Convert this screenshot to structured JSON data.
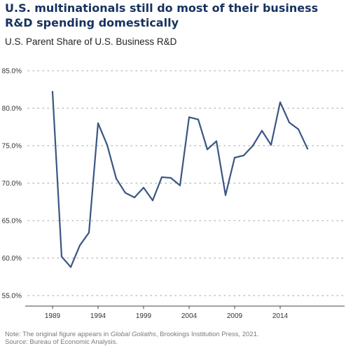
{
  "title": "U.S. multinationals still do most of their business R&D spending domestically",
  "subtitle": "U.S. Parent Share of U.S. Business R&D",
  "footer": {
    "note_prefix": "Note: The original figure appears in ",
    "note_italic": "Global Goliaths",
    "note_suffix": ", Brookings Institution Press, 2021.",
    "source": "Source: Bureau of Economic Analysis."
  },
  "chart_data": {
    "type": "line",
    "title": "U.S. Parent Share of U.S. Business R&D",
    "xlabel": "",
    "ylabel": "",
    "xlim": [
      1989,
      2017
    ],
    "ylim": [
      55,
      85
    ],
    "x_ticks": [
      1989,
      1994,
      1999,
      2004,
      2009,
      2014
    ],
    "y_ticks": [
      55,
      60,
      65,
      70,
      75,
      80,
      85
    ],
    "y_tick_labels": [
      "55.0%",
      "60.0%",
      "65.0%",
      "70.0%",
      "75.0%",
      "80.0%",
      "85.0%"
    ],
    "grid": "horizontal dotted",
    "color": "#3a5683",
    "series": [
      {
        "x": [
          1989,
          1990,
          1991,
          1992,
          1993,
          1994,
          1995,
          1996,
          1997,
          1998,
          1999,
          2000,
          2001,
          2002,
          2003,
          2004,
          2005,
          2006,
          2007,
          2008,
          2009,
          2010,
          2011,
          2012,
          2013,
          2014,
          2015,
          2016,
          2017
        ],
        "values": [
          82.2,
          60.2,
          58.8,
          61.7,
          63.4,
          78.0,
          75.1,
          70.6,
          68.7,
          68.1,
          69.4,
          67.7,
          70.8,
          70.7,
          69.7,
          78.8,
          78.5,
          74.5,
          75.6,
          68.4,
          73.4,
          73.7,
          75.0,
          77.0,
          75.1,
          80.8,
          78.1,
          77.2,
          74.6
        ]
      }
    ]
  }
}
